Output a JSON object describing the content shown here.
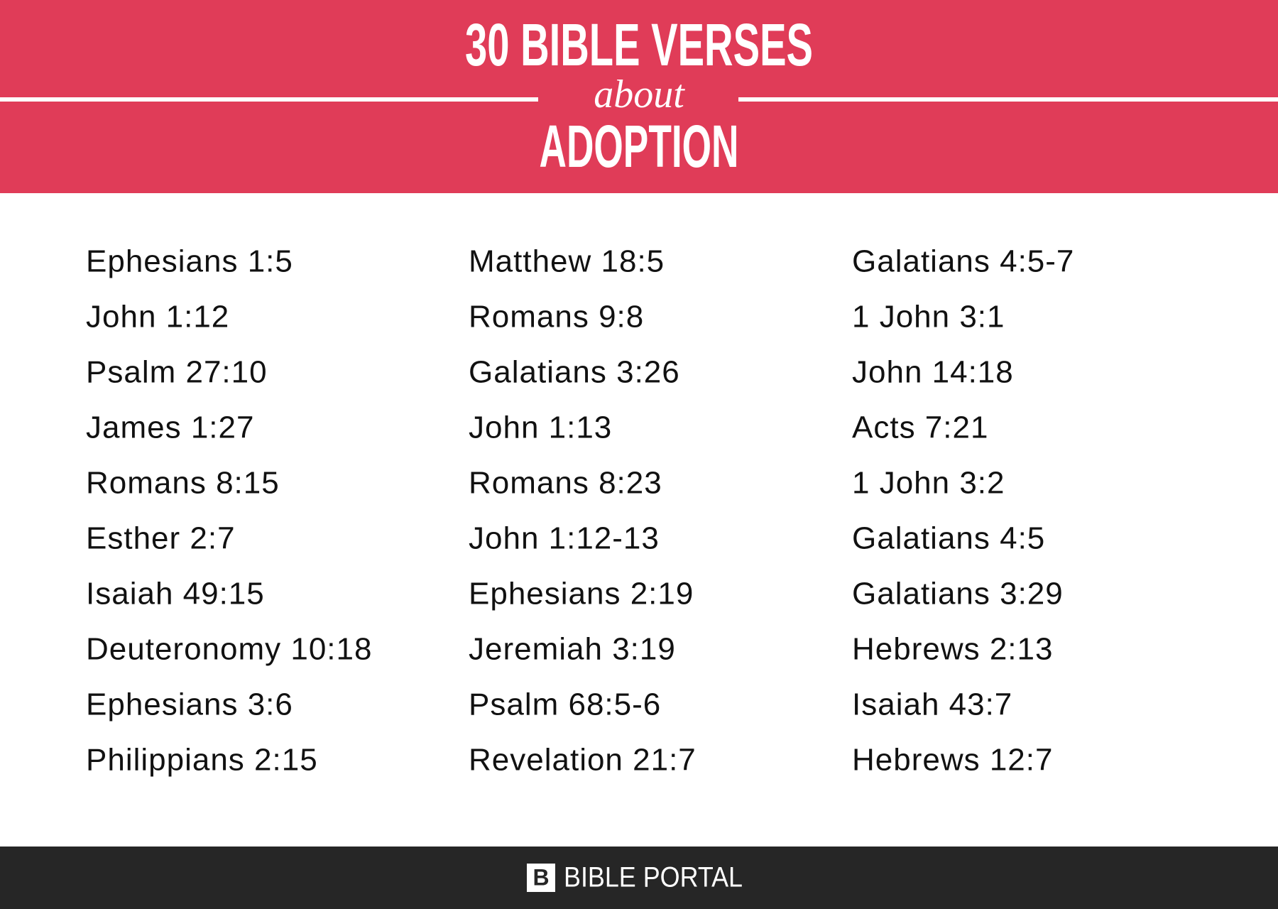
{
  "header": {
    "title": "30 BIBLE VERSES",
    "subtitle": "about",
    "topic": "ADOPTION"
  },
  "columns": [
    [
      "Ephesians 1:5",
      "John 1:12",
      "Psalm 27:10",
      "James 1:27",
      "Romans 8:15",
      "Esther 2:7",
      "Isaiah 49:15",
      "Deuteronomy 10:18",
      "Ephesians 3:6",
      "Philippians 2:15"
    ],
    [
      "Matthew 18:5",
      "Romans 9:8",
      "Galatians 3:26",
      "John 1:13",
      "Romans 8:23",
      "John 1:12-13",
      "Ephesians 2:19",
      "Jeremiah 3:19",
      "Psalm 68:5-6",
      "Revelation 21:7"
    ],
    [
      "Galatians 4:5-7",
      "1 John 3:1",
      "John 14:18",
      "Acts 7:21",
      "1 John 3:2",
      "Galatians 4:5",
      "Galatians 3:29",
      "Hebrews 2:13",
      "Isaiah 43:7",
      "Hebrews 12:7"
    ]
  ],
  "footer": {
    "logo": "B",
    "brand": "BIBLE PORTAL"
  }
}
